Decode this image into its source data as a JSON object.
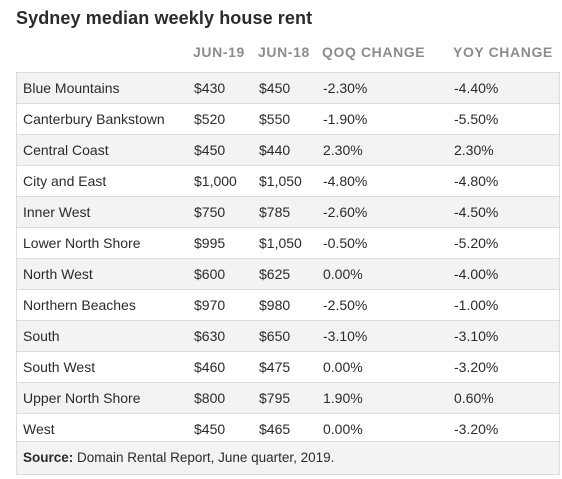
{
  "chart_data": {
    "type": "table",
    "title": "Sydney median weekly house rent",
    "columns": [
      "",
      "JUN-19",
      "JUN-18",
      "QOQ CHANGE",
      "YOY CHANGE"
    ],
    "rows": [
      [
        "Blue Mountains",
        "$430",
        "$450",
        "-2.30%",
        "-4.40%"
      ],
      [
        "Canterbury Bankstown",
        "$520",
        "$550",
        "-1.90%",
        "-5.50%"
      ],
      [
        "Central Coast",
        "$450",
        "$440",
        "2.30%",
        "2.30%"
      ],
      [
        "City and East",
        "$1,000",
        "$1,050",
        "-4.80%",
        "-4.80%"
      ],
      [
        "Inner West",
        "$750",
        "$785",
        "-2.60%",
        "-4.50%"
      ],
      [
        "Lower North Shore",
        "$995",
        "$1,050",
        "-0.50%",
        "-5.20%"
      ],
      [
        "North West",
        "$600",
        "$625",
        "0.00%",
        "-4.00%"
      ],
      [
        "Northern Beaches",
        "$970",
        "$980",
        "-2.50%",
        "-1.00%"
      ],
      [
        "South",
        "$630",
        "$650",
        "-3.10%",
        "-3.10%"
      ],
      [
        "South West",
        "$460",
        "$475",
        "0.00%",
        "-3.20%"
      ],
      [
        "Upper North Shore",
        "$800",
        "$795",
        "1.90%",
        "0.60%"
      ],
      [
        "West",
        "$450",
        "$465",
        "0.00%",
        "-3.20%"
      ]
    ],
    "source_label": "Source:",
    "source_text": "Domain Rental Report, June quarter, 2019."
  }
}
